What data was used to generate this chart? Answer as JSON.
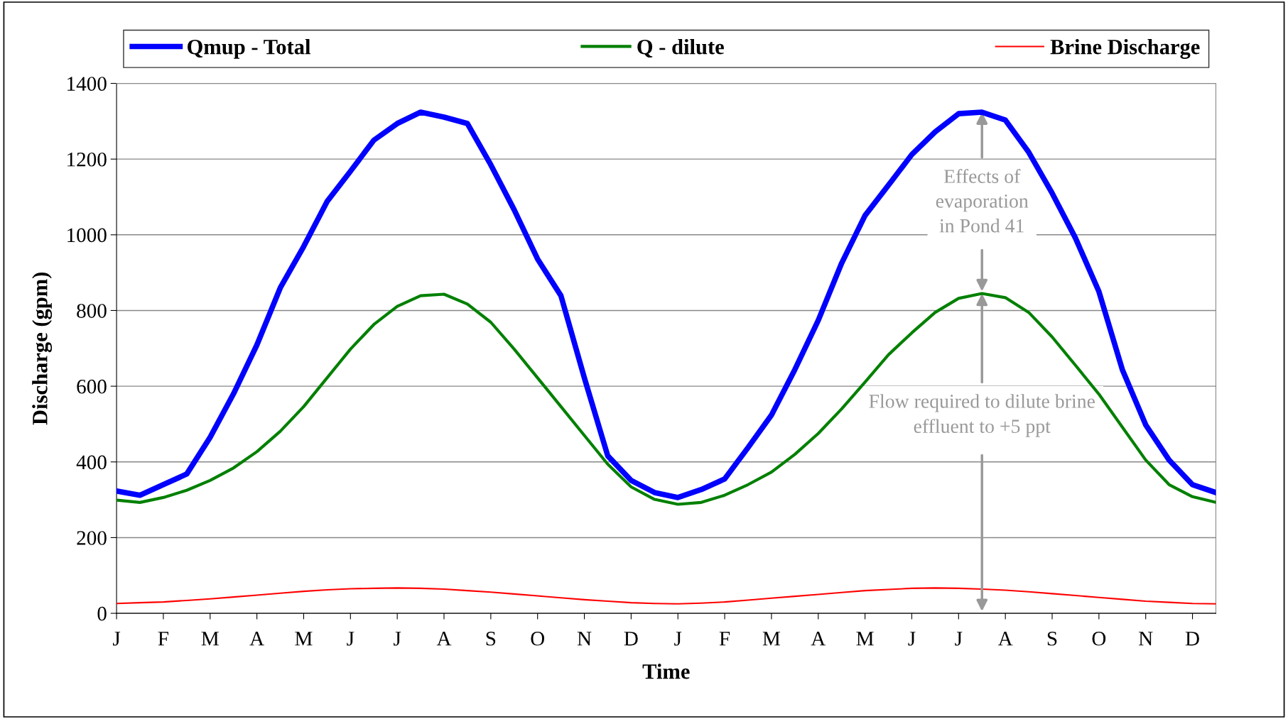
{
  "chart_data": {
    "type": "line",
    "xlabel": "Time",
    "ylabel": "Discharge (gpm)",
    "categories": [
      "J",
      null,
      "F",
      null,
      "M",
      null,
      "A",
      null,
      "M",
      null,
      "J",
      null,
      "J",
      null,
      "A",
      null,
      "S",
      null,
      "O",
      null,
      "N",
      null,
      "D",
      null,
      "J",
      null,
      "F",
      null,
      "M",
      null,
      "A",
      null,
      "M",
      null,
      "J",
      null,
      "J",
      null,
      "A",
      null,
      "S",
      null,
      "O",
      null,
      "N",
      null,
      "D",
      null
    ],
    "series": [
      {
        "name": "Qmup - Total",
        "color": "#0000ff",
        "values": [
          323,
          312,
          340,
          368,
          465,
          580,
          709,
          860,
          969,
          1088,
          1168,
          1250,
          1294,
          1324,
          1311,
          1294,
          1185,
          1066,
          936,
          839,
          622,
          416,
          351,
          319,
          306,
          327,
          355,
          438,
          524,
          644,
          774,
          925,
          1051,
          1131,
          1212,
          1272,
          1320,
          1324,
          1303,
          1218,
          1110,
          991,
          850,
          644,
          498,
          405,
          340,
          319
        ]
      },
      {
        "name": "Q - dilute",
        "color": "#008000",
        "values": [
          299,
          293,
          306,
          325,
          351,
          384,
          427,
          481,
          546,
          622,
          698,
          763,
          811,
          839,
          843,
          817,
          769,
          698,
          622,
          546,
          470,
          394,
          334,
          301,
          288,
          293,
          312,
          340,
          373,
          420,
          475,
          540,
          611,
          683,
          741,
          795,
          832,
          845,
          834,
          795,
          730,
          655,
          579,
          492,
          405,
          340,
          308,
          293
        ]
      },
      {
        "name": "Brine Discharge",
        "color": "#ff0000",
        "values": [
          26,
          28,
          30,
          34,
          38,
          43,
          48,
          53,
          58,
          62,
          65,
          66,
          67,
          66,
          64,
          60,
          56,
          51,
          46,
          41,
          36,
          32,
          28,
          26,
          25,
          27,
          30,
          35,
          40,
          45,
          50,
          55,
          60,
          63,
          66,
          67,
          66,
          64,
          61,
          57,
          52,
          47,
          42,
          37,
          32,
          29,
          26,
          25
        ]
      }
    ],
    "ylim": [
      0,
      1400
    ],
    "yticks": [
      0,
      200,
      400,
      600,
      800,
      1000,
      1200,
      1400
    ],
    "grid": "y",
    "legend": "top",
    "marker": "none",
    "line_style": "solid",
    "annotations": [
      {
        "text": "Effects of\nevaporation\nin Pond 41",
        "y": 1324
      },
      {
        "text": "Flow required to dilute brine\neffluent to +5 ppt",
        "y": 845
      }
    ]
  }
}
